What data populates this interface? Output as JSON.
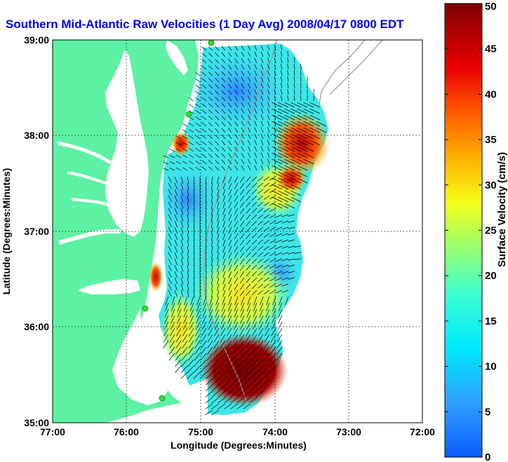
{
  "title": "Southern Mid-Atlantic Raw Velocities (1 Day Avg) 2008/04/17 0800 EDT",
  "map": {
    "x_axis": {
      "label": "Longitude (Degrees:Minutes)",
      "ticks": [
        "77:00",
        "76:00",
        "75:00",
        "74:00",
        "73:00",
        "72:00"
      ],
      "range_deg_west": [
        77,
        72
      ]
    },
    "y_axis": {
      "label": "Latitude (Degrees:Minutes)",
      "ticks": [
        "39:00",
        "38:00",
        "37:00",
        "36:00",
        "35:00"
      ],
      "range_deg_north": [
        35,
        39
      ]
    },
    "grid": true,
    "colors": {
      "land": "#5df2a3",
      "water": "#ffffff",
      "bathymetry": "#999999",
      "stations": "#33dd33",
      "vectors": "#000000"
    }
  },
  "colorbar": {
    "label": "Surface Velocity (cm/s)",
    "units": "cm/s",
    "ticks": [
      "0",
      "5",
      "10",
      "15",
      "20",
      "25",
      "30",
      "35",
      "40",
      "45",
      "50"
    ],
    "range": [
      0,
      50
    ],
    "colormap": "jet",
    "placement": "right"
  }
}
